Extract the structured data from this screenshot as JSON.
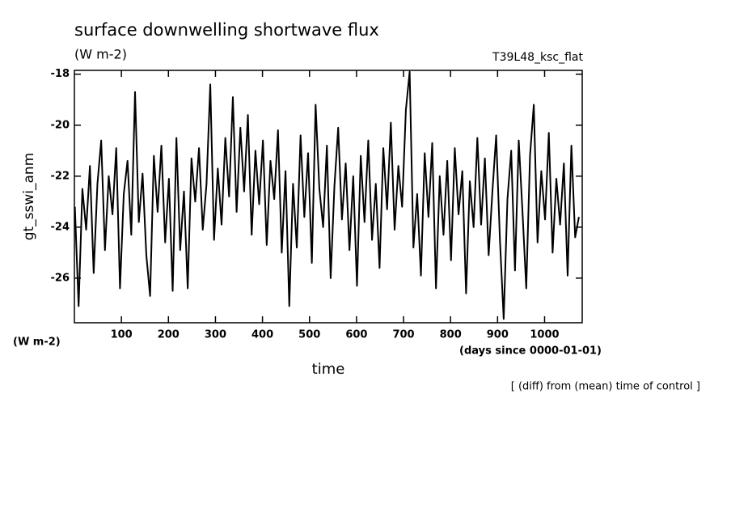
{
  "chart_data": {
    "type": "line",
    "title": "surface downwelling shortwave flux",
    "subtitle": "(W m-2)",
    "run_label": "T39L48_ksc_flat",
    "y_label": "gt_sswi_anm",
    "y_unit": "(W m-2)",
    "x_label": "time",
    "x_unit": "(days since 0000-01-01)",
    "note": "[ (diff) from (mean) time of control ]",
    "color": "#000000",
    "xlim": [
      0,
      1080
    ],
    "ylim": [
      -27.75,
      -17.85
    ],
    "xticks": [
      100,
      200,
      300,
      400,
      500,
      600,
      700,
      800,
      900,
      1000
    ],
    "yticks": [
      -26,
      -24,
      -22,
      -20,
      -18
    ],
    "x": [
      1,
      9,
      17,
      25,
      33,
      41,
      49,
      57,
      65,
      73,
      81,
      89,
      97,
      105,
      113,
      121,
      129,
      137,
      145,
      153,
      161,
      169,
      177,
      185,
      193,
      201,
      209,
      217,
      225,
      233,
      241,
      249,
      257,
      265,
      273,
      281,
      289,
      297,
      305,
      313,
      321,
      329,
      337,
      345,
      353,
      361,
      369,
      377,
      385,
      393,
      401,
      409,
      417,
      425,
      433,
      441,
      449,
      457,
      465,
      473,
      481,
      489,
      497,
      505,
      513,
      521,
      529,
      537,
      545,
      553,
      561,
      569,
      577,
      585,
      593,
      601,
      609,
      617,
      625,
      633,
      641,
      649,
      657,
      665,
      673,
      681,
      689,
      697,
      705,
      713,
      721,
      729,
      737,
      745,
      753,
      761,
      769,
      777,
      785,
      793,
      801,
      809,
      817,
      825,
      833,
      841,
      849,
      857,
      865,
      873,
      881,
      889,
      897,
      905,
      913,
      921,
      929,
      937,
      945,
      953,
      961,
      969,
      977,
      985,
      993,
      1001,
      1009,
      1017,
      1025,
      1033,
      1041,
      1049,
      1057,
      1065,
      1073
    ],
    "values": [
      -23.2,
      -27.1,
      -22.5,
      -24.1,
      -21.6,
      -25.8,
      -22.3,
      -20.6,
      -24.9,
      -22.0,
      -23.5,
      -20.9,
      -26.4,
      -22.7,
      -21.4,
      -24.3,
      -18.7,
      -23.8,
      -21.9,
      -25.1,
      -26.7,
      -21.2,
      -23.4,
      -20.8,
      -24.6,
      -22.1,
      -26.5,
      -20.5,
      -24.9,
      -22.6,
      -26.4,
      -21.3,
      -23.0,
      -20.9,
      -24.1,
      -22.3,
      -18.4,
      -24.5,
      -21.7,
      -23.9,
      -20.5,
      -22.8,
      -18.9,
      -23.4,
      -20.1,
      -22.6,
      -19.6,
      -24.3,
      -21.0,
      -23.1,
      -20.6,
      -24.7,
      -21.4,
      -22.9,
      -20.2,
      -25.0,
      -21.8,
      -27.1,
      -22.3,
      -24.8,
      -20.4,
      -23.6,
      -21.1,
      -25.4,
      -19.2,
      -22.5,
      -24.0,
      -20.8,
      -26.0,
      -22.4,
      -20.1,
      -23.7,
      -21.5,
      -24.9,
      -22.0,
      -26.3,
      -21.2,
      -23.8,
      -20.6,
      -24.5,
      -22.3,
      -25.6,
      -20.9,
      -23.3,
      -19.9,
      -24.1,
      -21.6,
      -23.2,
      -19.4,
      -17.9,
      -24.8,
      -22.7,
      -25.9,
      -21.1,
      -23.6,
      -20.7,
      -26.4,
      -22.0,
      -24.3,
      -21.4,
      -25.3,
      -20.9,
      -23.5,
      -21.8,
      -26.6,
      -22.2,
      -24.0,
      -20.5,
      -23.9,
      -21.3,
      -25.1,
      -22.6,
      -20.4,
      -24.5,
      -27.6,
      -22.9,
      -21.0,
      -25.7,
      -20.6,
      -23.4,
      -26.4,
      -21.2,
      -19.2,
      -24.6,
      -21.8,
      -23.7,
      -20.3,
      -25.0,
      -22.1,
      -23.9,
      -21.5,
      -25.9,
      -20.8,
      -24.4,
      -23.6
    ]
  }
}
